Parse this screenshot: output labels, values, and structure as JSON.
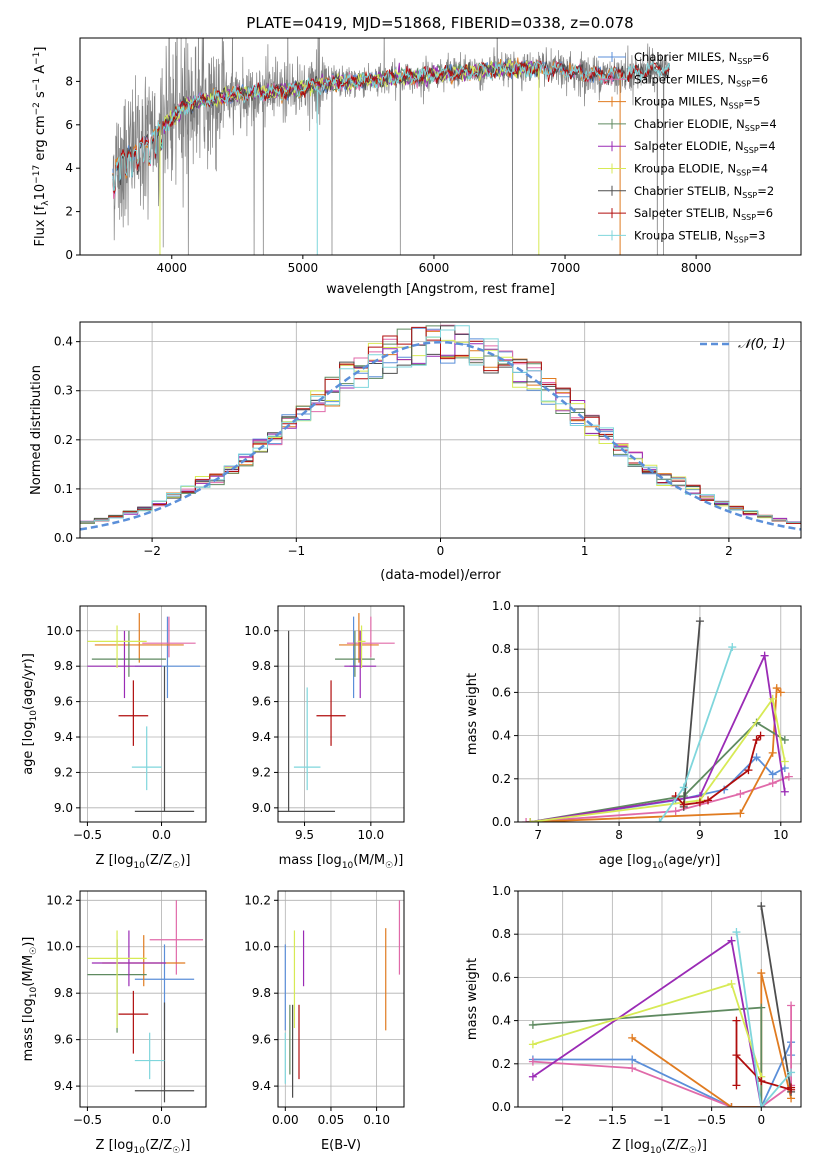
{
  "figure": {
    "title": "PLATE=0419, MJD=51868, FIBERID=0338, z=0.078"
  },
  "colors": {
    "Chabrier MILES": "#5b8fd9",
    "Salpeter MILES": "#e06aa9",
    "Kroupa MILES": "#e07b20",
    "Chabrier ELODIE": "#5f8a60",
    "Salpeter ELODIE": "#9a2bb5",
    "Kroupa ELODIE": "#d7ea55",
    "Chabrier STELIB": "#4d4d4d",
    "Salpeter STELIB": "#b00d0d",
    "Kroupa STELIB": "#7fd6dc",
    "data": "#808080",
    "gaussian": "#5b8fd9"
  },
  "chart_data": [
    {
      "id": "spectrum",
      "type": "line",
      "title": "PLATE=0419, MJD=51868, FIBERID=0338, z=0.078",
      "xlabel": "wavelength [Angstrom, rest frame]",
      "ylabel": "Flux [f_λ 10^-17 erg cm^-2 s^-1 A^-1]",
      "xlim": [
        3300,
        8800
      ],
      "ylim": [
        0,
        10
      ],
      "xticks": [
        4000,
        5000,
        6000,
        7000,
        8000
      ],
      "yticks": [
        0,
        2,
        4,
        6,
        8
      ],
      "legend_position": "top-right",
      "legend": [
        {
          "name": "Chabrier MILES, N_SSP=6",
          "main": "Chabrier MILES, N",
          "sub": "SSP",
          "tail": "=6"
        },
        {
          "name": "Salpeter MILES, N_SSP=6",
          "main": "Salpeter MILES, N",
          "sub": "SSP",
          "tail": "=6"
        },
        {
          "name": "Kroupa MILES, N_SSP=5",
          "main": "Kroupa MILES, N",
          "sub": "SSP",
          "tail": "=5"
        },
        {
          "name": "Chabrier ELODIE, N_SSP=4",
          "main": "Chabrier ELODIE, N",
          "sub": "SSP",
          "tail": "=4"
        },
        {
          "name": "Salpeter ELODIE, N_SSP=4",
          "main": "Salpeter ELODIE, N",
          "sub": "SSP",
          "tail": "=4"
        },
        {
          "name": "Kroupa ELODIE, N_SSP=4",
          "main": "Kroupa ELODIE, N",
          "sub": "SSP",
          "tail": "=4"
        },
        {
          "name": "Chabrier STELIB, N_SSP=2",
          "main": "Chabrier STELIB, N",
          "sub": "SSP",
          "tail": "=2"
        },
        {
          "name": "Salpeter STELIB, N_SSP=6",
          "main": "Salpeter STELIB, N",
          "sub": "SSP",
          "tail": "=6"
        },
        {
          "name": "Kroupa STELIB, N_SSP=3",
          "main": "Kroupa STELIB, N",
          "sub": "SSP",
          "tail": "=3"
        }
      ],
      "continuum": [
        [
          3550,
          3.9
        ],
        [
          3650,
          4.6
        ],
        [
          3800,
          5.2
        ],
        [
          3950,
          6.0
        ],
        [
          4100,
          6.9
        ],
        [
          4250,
          7.1
        ],
        [
          4400,
          7.3
        ],
        [
          4600,
          7.5
        ],
        [
          4800,
          7.5
        ],
        [
          5000,
          7.7
        ],
        [
          5200,
          7.9
        ],
        [
          5400,
          8.0
        ],
        [
          5600,
          8.1
        ],
        [
          5800,
          8.2
        ],
        [
          6000,
          8.3
        ],
        [
          6200,
          8.4
        ],
        [
          6400,
          8.5
        ],
        [
          6600,
          8.6
        ],
        [
          6800,
          8.6
        ],
        [
          7000,
          8.5
        ],
        [
          7200,
          8.3
        ],
        [
          7400,
          8.3
        ],
        [
          7600,
          8.5
        ],
        [
          7800,
          8.6
        ]
      ],
      "model_ranges": {
        "Chabrier MILES": [
          3550,
          7400
        ],
        "Salpeter MILES": [
          3550,
          7400
        ],
        "Kroupa MILES": [
          3550,
          7400
        ],
        "Chabrier ELODIE": [
          3900,
          6800
        ],
        "Salpeter ELODIE": [
          3900,
          6800
        ],
        "Kroupa ELODIE": [
          3900,
          6800
        ],
        "Chabrier STELIB": [
          3550,
          7800
        ],
        "Salpeter STELIB": [
          3550,
          7800
        ],
        "Kroupa STELIB": [
          3550,
          7800
        ]
      },
      "data_range": [
        3550,
        7800
      ]
    },
    {
      "id": "residuals",
      "type": "bar",
      "xlabel": "(data-model)/error",
      "ylabel": "Normed distribution",
      "xlim": [
        -2.5,
        2.5
      ],
      "ylim": [
        0,
        0.44
      ],
      "xticks": [
        -2,
        -1,
        0,
        1,
        2
      ],
      "yticks": [
        0.0,
        0.1,
        0.2,
        0.3,
        0.4
      ],
      "grid": true,
      "legend_position": "top-right",
      "gaussian_label": "𝒩(0, 1)",
      "bin_width": 0.1
    },
    {
      "id": "age-vs-Z",
      "type": "scatter",
      "xlabel": "Z [log10(Z/Z☉)]",
      "ylabel": "age [log10(age/yr)]",
      "xlim": [
        -0.55,
        0.3
      ],
      "ylim": [
        8.92,
        10.14
      ],
      "xticks": [
        -0.5,
        0.0
      ],
      "yticks": [
        9.0,
        9.2,
        9.4,
        9.6,
        9.8,
        10.0
      ],
      "grid": true,
      "points": [
        {
          "model": "Chabrier MILES",
          "x": 0.04,
          "y": 9.8,
          "xerr": 0.22,
          "yerr": [
            0.18,
            0.28
          ]
        },
        {
          "model": "Salpeter MILES",
          "x": 0.05,
          "y": 9.93,
          "xerr": 0.18,
          "yerr": [
            0.08,
            0.15
          ]
        },
        {
          "model": "Kroupa MILES",
          "x": -0.15,
          "y": 9.92,
          "xerr": 0.3,
          "yerr": [
            0.1,
            0.18
          ]
        },
        {
          "model": "Chabrier ELODIE",
          "x": -0.22,
          "y": 9.84,
          "xerr": 0.25,
          "yerr": [
            0.1,
            0.16
          ]
        },
        {
          "model": "Salpeter ELODIE",
          "x": -0.25,
          "y": 9.8,
          "xerr": 0.25,
          "yerr": [
            0.18,
            0.2
          ]
        },
        {
          "model": "Kroupa ELODIE",
          "x": -0.3,
          "y": 9.94,
          "xerr": 0.2,
          "yerr": [
            0.15,
            0.09
          ]
        },
        {
          "model": "Chabrier STELIB",
          "x": 0.02,
          "y": 8.98,
          "xerr": 0.2,
          "yerr": [
            0.0,
            0.82
          ]
        },
        {
          "model": "Salpeter STELIB",
          "x": -0.19,
          "y": 9.52,
          "xerr": 0.1,
          "yerr": [
            0.17,
            0.2
          ]
        },
        {
          "model": "Kroupa STELIB",
          "x": -0.1,
          "y": 9.23,
          "xerr": 0.1,
          "yerr": [
            0.13,
            0.23
          ]
        }
      ]
    },
    {
      "id": "age-vs-mass",
      "type": "scatter",
      "xlabel": "mass [log10(M/M☉)]",
      "xlim": [
        9.3,
        10.25
      ],
      "ylim": [
        8.92,
        10.14
      ],
      "xticks": [
        9.5,
        10.0
      ],
      "yticks": [
        9.0,
        9.2,
        9.4,
        9.6,
        9.8,
        10.0
      ],
      "grid": true,
      "points": [
        {
          "model": "Chabrier MILES",
          "x": 9.87,
          "y": 9.8,
          "xerr": 0.03,
          "yerr": [
            0.18,
            0.28
          ]
        },
        {
          "model": "Salpeter MILES",
          "x": 10.0,
          "y": 9.93,
          "xerr": 0.18,
          "yerr": [
            0.08,
            0.15
          ]
        },
        {
          "model": "Kroupa MILES",
          "x": 9.91,
          "y": 9.92,
          "xerr": 0.15,
          "yerr": [
            0.1,
            0.18
          ]
        },
        {
          "model": "Chabrier ELODIE",
          "x": 9.88,
          "y": 9.84,
          "xerr": 0.15,
          "yerr": [
            0.1,
            0.16
          ]
        },
        {
          "model": "Salpeter ELODIE",
          "x": 9.92,
          "y": 9.8,
          "xerr": 0.12,
          "yerr": [
            0.18,
            0.2
          ]
        },
        {
          "model": "Kroupa ELODIE",
          "x": 9.93,
          "y": 9.94,
          "xerr": 0.03,
          "yerr": [
            0.15,
            0.09
          ]
        },
        {
          "model": "Chabrier STELIB",
          "x": 9.38,
          "y": 8.98,
          "xerr": 0.35,
          "yerr": [
            0.0,
            1.02
          ]
        },
        {
          "model": "Salpeter STELIB",
          "x": 9.7,
          "y": 9.52,
          "xerr": 0.11,
          "yerr": [
            0.17,
            0.2
          ]
        },
        {
          "model": "Kroupa STELIB",
          "x": 9.52,
          "y": 9.23,
          "xerr": 0.1,
          "yerr": [
            0.13,
            0.45
          ]
        }
      ]
    },
    {
      "id": "weight-vs-age",
      "type": "line",
      "xlabel": "age [log10(age/yr)]",
      "ylabel": "mass weight",
      "xlim": [
        6.75,
        10.25
      ],
      "ylim": [
        0,
        1
      ],
      "xticks": [
        7,
        8,
        9,
        10
      ],
      "yticks": [
        0.0,
        0.2,
        0.4,
        0.6,
        0.8,
        1.0
      ],
      "grid": true,
      "series": [
        {
          "model": "Chabrier MILES",
          "x": [
            6.9,
            8.7,
            9.3,
            9.7,
            9.9,
            10.05
          ],
          "y": [
            0.0,
            0.1,
            0.15,
            0.3,
            0.22,
            0.25
          ]
        },
        {
          "model": "Salpeter MILES",
          "x": [
            6.85,
            8.7,
            9.5,
            9.9,
            10.1
          ],
          "y": [
            0.0,
            0.05,
            0.13,
            0.18,
            0.21
          ]
        },
        {
          "model": "Kroupa MILES",
          "x": [
            6.9,
            9.5,
            9.9,
            9.95,
            10.0
          ],
          "y": [
            0.0,
            0.04,
            0.32,
            0.62,
            0.6
          ]
        },
        {
          "model": "Chabrier ELODIE",
          "x": [
            6.9,
            8.8,
            9.7,
            10.05
          ],
          "y": [
            0.0,
            0.12,
            0.46,
            0.38
          ]
        },
        {
          "model": "Salpeter ELODIE",
          "x": [
            6.9,
            9.0,
            9.8,
            10.05
          ],
          "y": [
            0.0,
            0.12,
            0.77,
            0.14
          ]
        },
        {
          "model": "Kroupa ELODIE",
          "x": [
            6.9,
            9.0,
            9.9,
            10.05
          ],
          "y": [
            0.0,
            0.1,
            0.57,
            0.28
          ]
        },
        {
          "model": "Chabrier STELIB",
          "x": [
            8.8,
            9.0
          ],
          "y": [
            0.07,
            0.93
          ]
        },
        {
          "model": "Salpeter STELIB",
          "x": [
            8.7,
            8.8,
            9.0,
            9.1,
            9.6,
            9.7,
            9.75
          ],
          "y": [
            0.12,
            0.08,
            0.09,
            0.1,
            0.24,
            0.38,
            0.4
          ]
        },
        {
          "model": "Kroupa STELIB",
          "x": [
            8.5,
            8.8,
            9.4
          ],
          "y": [
            0.0,
            0.16,
            0.81
          ]
        }
      ]
    },
    {
      "id": "mass-vs-Z",
      "type": "scatter",
      "xlabel": "Z [log10(Z/Z☉)]",
      "ylabel": "mass [log10(M/M☉)]",
      "xlim": [
        -0.55,
        0.3
      ],
      "ylim": [
        9.31,
        10.24
      ],
      "xticks": [
        -0.5,
        0.0
      ],
      "yticks": [
        9.4,
        9.6,
        9.8,
        10.0,
        10.2
      ],
      "grid": true,
      "points": [
        {
          "model": "Chabrier MILES",
          "x": 0.02,
          "y": 9.86,
          "xerr": 0.2,
          "yerr": [
            0.22,
            0.15
          ]
        },
        {
          "model": "Salpeter MILES",
          "x": 0.1,
          "y": 10.03,
          "xerr": 0.18,
          "yerr": [
            0.15,
            0.17
          ]
        },
        {
          "model": "Kroupa MILES",
          "x": -0.12,
          "y": 9.93,
          "xerr": 0.28,
          "yerr": [
            0.1,
            0.12
          ]
        },
        {
          "model": "Chabrier ELODIE",
          "x": -0.3,
          "y": 9.88,
          "xerr": 0.2,
          "yerr": [
            0.25,
            0.15
          ]
        },
        {
          "model": "Salpeter ELODIE",
          "x": -0.22,
          "y": 9.93,
          "xerr": 0.25,
          "yerr": [
            0.1,
            0.14
          ]
        },
        {
          "model": "Kroupa ELODIE",
          "x": -0.3,
          "y": 9.95,
          "xerr": 0.2,
          "yerr": [
            0.3,
            0.12
          ]
        },
        {
          "model": "Chabrier STELIB",
          "x": 0.02,
          "y": 9.38,
          "xerr": 0.2,
          "yerr": [
            0.05,
            0.38
          ]
        },
        {
          "model": "Salpeter STELIB",
          "x": -0.19,
          "y": 9.71,
          "xerr": 0.1,
          "yerr": [
            0.17,
            0.1
          ]
        },
        {
          "model": "Kroupa STELIB",
          "x": -0.08,
          "y": 9.51,
          "xerr": 0.1,
          "yerr": [
            0.08,
            0.12
          ]
        }
      ]
    },
    {
      "id": "mass-vs-EBV",
      "type": "scatter",
      "xlabel": "E(B-V)",
      "xlim": [
        -0.008,
        0.13
      ],
      "ylim": [
        9.31,
        10.24
      ],
      "xticks": [
        0.0,
        0.05,
        0.1
      ],
      "yticks": [
        9.4,
        9.6,
        9.8,
        10.0,
        10.2
      ],
      "grid": true,
      "points": [
        {
          "model": "Chabrier MILES",
          "x": 0.0,
          "y": 9.86,
          "yerr": [
            0.22,
            0.15
          ]
        },
        {
          "model": "Salpeter MILES",
          "x": 0.125,
          "y": 10.03,
          "yerr": [
            0.15,
            0.17
          ]
        },
        {
          "model": "Kroupa MILES",
          "x": 0.11,
          "y": 9.86,
          "yerr": [
            0.22,
            0.22
          ]
        },
        {
          "model": "Chabrier ELODIE",
          "x": 0.005,
          "y": 9.65,
          "yerr": [
            0.2,
            0.1
          ]
        },
        {
          "model": "Salpeter ELODIE",
          "x": 0.02,
          "y": 9.93,
          "yerr": [
            0.1,
            0.14
          ]
        },
        {
          "model": "Kroupa ELODIE",
          "x": 0.01,
          "y": 9.95,
          "yerr": [
            0.3,
            0.12
          ]
        },
        {
          "model": "Chabrier STELIB",
          "x": 0.008,
          "y": 9.55,
          "yerr": [
            0.2,
            0.2
          ]
        },
        {
          "model": "Salpeter STELIB",
          "x": 0.015,
          "y": 9.6,
          "yerr": [
            0.17,
            0.15
          ]
        },
        {
          "model": "Kroupa STELIB",
          "x": 0.0,
          "y": 9.51,
          "yerr": [
            0.1,
            0.12
          ]
        }
      ]
    },
    {
      "id": "weight-vs-Z",
      "type": "line",
      "xlabel": "Z [log10(Z/Z☉)]",
      "ylabel": "mass weight",
      "xlim": [
        -2.45,
        0.4
      ],
      "ylim": [
        0,
        1
      ],
      "xticks": [
        -2.0,
        -1.5,
        -1.0,
        -0.5,
        0.0
      ],
      "yticks": [
        0.0,
        0.2,
        0.4,
        0.6,
        0.8,
        1.0
      ],
      "grid": true,
      "series": [
        {
          "model": "Chabrier MILES",
          "x": [
            -2.3,
            -1.3,
            -0.3,
            0.0,
            0.3,
            0.3
          ],
          "y": [
            0.22,
            0.22,
            0.0,
            0.0,
            0.3,
            0.24
          ]
        },
        {
          "model": "Salpeter MILES",
          "x": [
            -2.3,
            -1.3,
            -0.3,
            0.0,
            0.3,
            0.3
          ],
          "y": [
            0.21,
            0.18,
            0.0,
            0.0,
            0.1,
            0.47
          ]
        },
        {
          "model": "Kroupa MILES",
          "x": [
            -1.3,
            -0.3,
            0.0,
            0.0,
            0.3
          ],
          "y": [
            0.32,
            0.0,
            0.0,
            0.62,
            0.04
          ]
        },
        {
          "model": "Chabrier ELODIE",
          "x": [
            -2.3,
            0.0,
            0.0
          ],
          "y": [
            0.38,
            0.46,
            0.0
          ]
        },
        {
          "model": "Salpeter ELODIE",
          "x": [
            -2.3,
            -0.3,
            0.0
          ],
          "y": [
            0.14,
            0.77,
            0.0
          ]
        },
        {
          "model": "Kroupa ELODIE",
          "x": [
            -2.3,
            -0.3,
            0.0
          ],
          "y": [
            0.29,
            0.57,
            0.14
          ]
        },
        {
          "model": "Chabrier STELIB",
          "x": [
            0.0,
            0.3
          ],
          "y": [
            0.93,
            0.07
          ]
        },
        {
          "model": "Salpeter STELIB",
          "x": [
            -0.25,
            -0.25,
            -0.25,
            0.0,
            0.3,
            0.3
          ],
          "y": [
            0.4,
            0.1,
            0.24,
            0.12,
            0.08,
            0.09
          ]
        },
        {
          "model": "Kroupa STELIB",
          "x": [
            -0.25,
            0.0,
            0.3
          ],
          "y": [
            0.81,
            0.0,
            0.16
          ]
        }
      ]
    }
  ]
}
